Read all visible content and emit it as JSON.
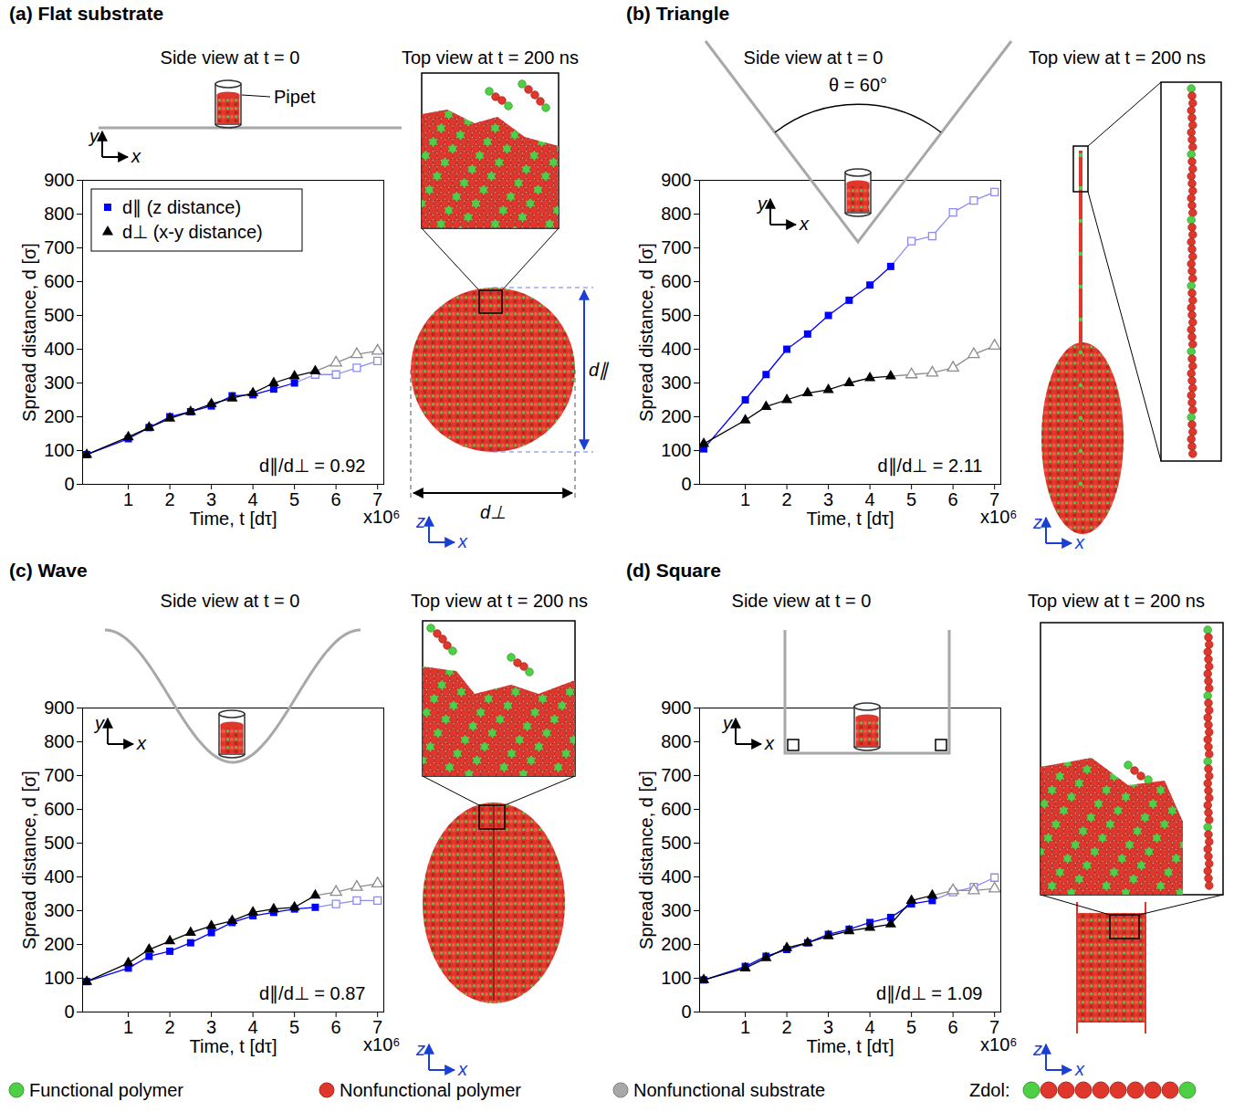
{
  "chart_data": [
    {
      "type": "line",
      "title": "(a) Flat substrate",
      "side_view_title": "Side view at t = 0",
      "top_view_title": "Top view at t = 200 ns",
      "side_view_labels": [
        "Pipet"
      ],
      "side_axes": [
        "x",
        "y"
      ],
      "top_axes": [
        "x",
        "z"
      ],
      "top_view_labels": [
        "d∥",
        "d⊥"
      ],
      "x_label": "Time, t [dτ]",
      "y_label": "Spread distance, d [σ]",
      "x_multiplier": "x10⁶",
      "annotation": "d∥/d⊥ = 0.92",
      "legend": "top-left",
      "x": [
        0,
        1,
        1.5,
        2,
        2.5,
        3,
        3.5,
        4,
        4.5,
        5,
        5.5,
        6,
        6.5,
        7
      ],
      "xlim": [
        -0.1,
        7.15
      ],
      "xticks": [
        1,
        2,
        3,
        4,
        5,
        6,
        7
      ],
      "ylim": [
        0,
        900
      ],
      "yticks": [
        0,
        100,
        200,
        300,
        400,
        500,
        600,
        700,
        800,
        900
      ],
      "series": [
        {
          "name": "d∥ (z distance)",
          "color": "#0000ff",
          "marker": "square",
          "values": [
            88,
            135,
            168,
            200,
            215,
            232,
            262,
            265,
            282,
            300,
            null,
            null,
            null,
            null
          ]
        },
        {
          "name": "d∥ (z distance)",
          "color": "#8c8cf0",
          "marker": "hollow-square",
          "values": [
            null,
            null,
            null,
            null,
            null,
            null,
            null,
            null,
            null,
            null,
            325,
            325,
            345,
            365
          ]
        },
        {
          "name": "d⊥ (x-y distance)",
          "color": "#000000",
          "marker": "triangle",
          "values": [
            88,
            140,
            168,
            195,
            215,
            238,
            255,
            270,
            300,
            320,
            335,
            null,
            null,
            null
          ]
        },
        {
          "name": "d⊥ (x-y distance)",
          "color": "#8c8c8c",
          "marker": "hollow-triangle",
          "values": [
            null,
            null,
            null,
            null,
            null,
            null,
            null,
            null,
            null,
            null,
            null,
            360,
            385,
            395
          ]
        }
      ]
    },
    {
      "type": "line",
      "title": "(b) Triangle",
      "side_view_title": "Side view at t = 0",
      "top_view_title": "Top view at t = 200 ns",
      "side_view_labels": [
        "θ = 60°"
      ],
      "side_axes": [
        "x",
        "y"
      ],
      "top_axes": [
        "x",
        "z"
      ],
      "x_label": "Time, t [dτ]",
      "y_label": "Spread distance, d [σ]",
      "x_multiplier": "x10⁶",
      "annotation": "d∥/d⊥ = 2.11",
      "x": [
        0,
        1,
        1.5,
        2,
        2.5,
        3,
        3.5,
        4,
        4.5,
        5,
        5.5,
        6,
        6.5,
        7
      ],
      "xlim": [
        -0.1,
        7.15
      ],
      "xticks": [
        1,
        2,
        3,
        4,
        5,
        6,
        7
      ],
      "ylim": [
        0,
        900
      ],
      "yticks": [
        0,
        100,
        200,
        300,
        400,
        500,
        600,
        700,
        800,
        900
      ],
      "series": [
        {
          "name": "d∥ (z distance)",
          "color": "#0000ff",
          "marker": "square",
          "values": [
            105,
            250,
            325,
            400,
            445,
            500,
            545,
            590,
            645,
            null,
            null,
            null,
            null,
            null
          ]
        },
        {
          "name": "d∥ (z distance)",
          "color": "#8c8cf0",
          "marker": "hollow-square",
          "values": [
            null,
            null,
            null,
            null,
            null,
            null,
            null,
            null,
            null,
            720,
            735,
            805,
            840,
            865
          ]
        },
        {
          "name": "d⊥ (x-y distance)",
          "color": "#000000",
          "marker": "triangle",
          "values": [
            120,
            190,
            230,
            250,
            270,
            280,
            300,
            315,
            320,
            null,
            null,
            null,
            null,
            null
          ]
        },
        {
          "name": "d⊥ (x-y distance)",
          "color": "#8c8c8c",
          "marker": "hollow-triangle",
          "values": [
            null,
            null,
            null,
            null,
            null,
            null,
            null,
            null,
            null,
            325,
            330,
            345,
            385,
            410
          ]
        }
      ]
    },
    {
      "type": "line",
      "title": "(c) Wave",
      "side_view_title": "Side view at t = 0",
      "top_view_title": "Top view at t = 200 ns",
      "side_axes": [
        "x",
        "y"
      ],
      "top_axes": [
        "x",
        "z"
      ],
      "x_label": "Time, t [dτ]",
      "y_label": "Spread distance, d [σ]",
      "x_multiplier": "x10⁶",
      "annotation": "d∥/d⊥ = 0.87",
      "x": [
        0,
        1,
        1.5,
        2,
        2.5,
        3,
        3.5,
        4,
        4.5,
        5,
        5.5,
        6,
        6.5,
        7
      ],
      "xlim": [
        -0.1,
        7.15
      ],
      "xticks": [
        1,
        2,
        3,
        4,
        5,
        6,
        7
      ],
      "ylim": [
        0,
        900
      ],
      "yticks": [
        0,
        100,
        200,
        300,
        400,
        500,
        600,
        700,
        800,
        900
      ],
      "series": [
        {
          "name": "d∥ (z distance)",
          "color": "#0000ff",
          "marker": "square",
          "values": [
            90,
            130,
            165,
            180,
            205,
            235,
            265,
            285,
            295,
            305,
            310,
            null,
            null,
            null
          ]
        },
        {
          "name": "d∥ (z distance)",
          "color": "#8c8cf0",
          "marker": "hollow-square",
          "values": [
            null,
            null,
            null,
            null,
            null,
            null,
            null,
            null,
            null,
            null,
            null,
            320,
            330,
            330
          ]
        },
        {
          "name": "d⊥ (x-y distance)",
          "color": "#000000",
          "marker": "triangle",
          "values": [
            90,
            145,
            185,
            210,
            235,
            255,
            270,
            295,
            305,
            310,
            345,
            null,
            null,
            null
          ]
        },
        {
          "name": "d⊥ (x-y distance)",
          "color": "#8c8c8c",
          "marker": "hollow-triangle",
          "values": [
            null,
            null,
            null,
            null,
            null,
            null,
            null,
            null,
            null,
            null,
            null,
            355,
            370,
            380
          ]
        }
      ]
    },
    {
      "type": "line",
      "title": "(d) Square",
      "side_view_title": "Side view at t = 0",
      "top_view_title": "Top view at t = 200 ns",
      "side_axes": [
        "x",
        "y"
      ],
      "top_axes": [
        "x",
        "z"
      ],
      "x_label": "Time, t [dτ]",
      "y_label": "Spread distance, d [σ]",
      "x_multiplier": "x10⁶",
      "annotation": "d∥/d⊥ = 1.09",
      "x": [
        0,
        1,
        1.5,
        2,
        2.5,
        3,
        3.5,
        4,
        4.5,
        5,
        5.5,
        6,
        6.5,
        7
      ],
      "xlim": [
        -0.1,
        7.15
      ],
      "xticks": [
        1,
        2,
        3,
        4,
        5,
        6,
        7
      ],
      "ylim": [
        0,
        900
      ],
      "yticks": [
        0,
        100,
        200,
        300,
        400,
        500,
        600,
        700,
        800,
        900
      ],
      "series": [
        {
          "name": "d∥ (z distance)",
          "color": "#0000ff",
          "marker": "square",
          "values": [
            95,
            135,
            165,
            185,
            205,
            230,
            245,
            265,
            280,
            320,
            330,
            null,
            null,
            null
          ]
        },
        {
          "name": "d∥ (z distance)",
          "color": "#8c8cf0",
          "marker": "hollow-square",
          "values": [
            null,
            null,
            null,
            null,
            null,
            null,
            null,
            null,
            null,
            null,
            null,
            355,
            370,
            398
          ]
        },
        {
          "name": "d⊥ (x-y distance)",
          "color": "#000000",
          "marker": "triangle",
          "values": [
            95,
            130,
            160,
            190,
            205,
            225,
            240,
            250,
            260,
            330,
            345,
            null,
            null,
            null
          ]
        },
        {
          "name": "d⊥ (x-y distance)",
          "color": "#8c8c8c",
          "marker": "hollow-triangle",
          "values": [
            null,
            null,
            null,
            null,
            null,
            null,
            null,
            null,
            null,
            null,
            null,
            360,
            360,
            365
          ]
        }
      ]
    }
  ],
  "key": {
    "items": [
      {
        "name": "Functional polymer",
        "color": "#4fcf45"
      },
      {
        "name": "Nonfunctional polymer",
        "color": "#e0372c"
      },
      {
        "name": "Nonfunctional substrate",
        "color": "#a8a8a8"
      }
    ],
    "chain_label": "Zdol:"
  }
}
